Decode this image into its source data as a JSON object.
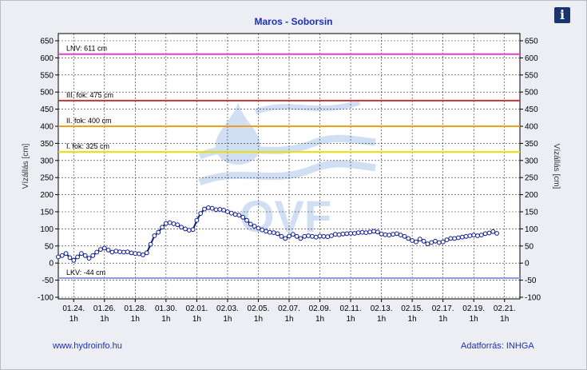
{
  "header": {
    "title": "Maros - Soborsin",
    "info_icon": "info-icon",
    "info_label": "i"
  },
  "footer": {
    "website": "www.hydroinfo.hu",
    "source": "Adatforrás: INHGA"
  },
  "watermark": "OVF",
  "colors": {
    "series": "#0a1a9a",
    "lnv": "#e040d0",
    "fok3": "#c8323a",
    "fok2": "#f0a020",
    "fok1": "#e8e000",
    "lkv": "#8b9ee8",
    "grid": "#2a2a2a",
    "watermark": "#aac6ea"
  },
  "chart_data": {
    "type": "line",
    "title": "Maros - Soborsin",
    "ylabel": "Vízállás [cm]",
    "ylim": [
      -100,
      650
    ],
    "yticks": [
      -100,
      -50,
      0,
      50,
      100,
      150,
      200,
      250,
      300,
      350,
      400,
      450,
      500,
      550,
      600,
      650
    ],
    "xlim": [
      0,
      30
    ],
    "xticks": [
      {
        "x": 1,
        "date": "01.24.",
        "hour": "1h"
      },
      {
        "x": 3,
        "date": "01.26.",
        "hour": "1h"
      },
      {
        "x": 5,
        "date": "01.28.",
        "hour": "1h"
      },
      {
        "x": 7,
        "date": "01.30.",
        "hour": "1h"
      },
      {
        "x": 9,
        "date": "02.01.",
        "hour": "1h"
      },
      {
        "x": 11,
        "date": "02.03.",
        "hour": "1h"
      },
      {
        "x": 13,
        "date": "02.05.",
        "hour": "1h"
      },
      {
        "x": 15,
        "date": "02.07.",
        "hour": "1h"
      },
      {
        "x": 17,
        "date": "02.09.",
        "hour": "1h"
      },
      {
        "x": 19,
        "date": "02.11.",
        "hour": "1h"
      },
      {
        "x": 21,
        "date": "02.13.",
        "hour": "1h"
      },
      {
        "x": 23,
        "date": "02.15.",
        "hour": "1h"
      },
      {
        "x": 25,
        "date": "02.17.",
        "hour": "1h"
      },
      {
        "x": 27,
        "date": "02.19.",
        "hour": "1h"
      },
      {
        "x": 29,
        "date": "02.21.",
        "hour": "1h"
      }
    ],
    "reference_lines": [
      {
        "key": "lnv",
        "label": "LNV: 611 cm",
        "value": 611,
        "color": "#e040d0"
      },
      {
        "key": "fok3",
        "label": "III. fok: 475 cm",
        "value": 475,
        "color": "#c8323a"
      },
      {
        "key": "fok2",
        "label": "II. fok: 400 cm",
        "value": 400,
        "color": "#f0a020"
      },
      {
        "key": "fok1",
        "label": "I. fok: 325 cm",
        "value": 325,
        "color": "#e8e000"
      },
      {
        "key": "lkv",
        "label": "LKV: -44 cm",
        "value": -44,
        "color": "#8b9ee8"
      }
    ],
    "grid": true,
    "series": [
      {
        "x": [
          0.0,
          0.25,
          0.5,
          0.75,
          1.0,
          1.25,
          1.5,
          1.75,
          2.0,
          2.25,
          2.5,
          2.75,
          3.0,
          3.25,
          3.5,
          3.75,
          4.0,
          4.25,
          4.5,
          4.75,
          5.0,
          5.25,
          5.5,
          5.75,
          6.0,
          6.25,
          6.5,
          6.75,
          7.0,
          7.25,
          7.5,
          7.75,
          8.0,
          8.25,
          8.5,
          8.75,
          9.0,
          9.25,
          9.5,
          9.75,
          10.0,
          10.25,
          10.5,
          10.75,
          11.0,
          11.25,
          11.5,
          11.75,
          12.0,
          12.25,
          12.5,
          12.75,
          13.0,
          13.25,
          13.5,
          13.75,
          14.0,
          14.25,
          14.5,
          14.75,
          15.0,
          15.25,
          15.5,
          15.75,
          16.0,
          16.25,
          16.5,
          16.75,
          17.0,
          17.25,
          17.5,
          17.75,
          18.0,
          18.25,
          18.5,
          18.75,
          19.0,
          19.25,
          19.5,
          19.75,
          20.0,
          20.25,
          20.5,
          20.75,
          21.0,
          21.25,
          21.5,
          21.75,
          22.0,
          22.25,
          22.5,
          22.75,
          23.0,
          23.25,
          23.5,
          23.75,
          24.0,
          24.25,
          24.5,
          24.75,
          25.0,
          25.25,
          25.5,
          25.75,
          26.0,
          26.25,
          26.5,
          26.75,
          27.0,
          27.25,
          27.5,
          27.75,
          28.0,
          28.25,
          28.5
        ],
        "values": [
          18,
          22,
          28,
          16,
          8,
          18,
          28,
          22,
          14,
          22,
          32,
          40,
          44,
          38,
          32,
          35,
          33,
          32,
          33,
          30,
          28,
          27,
          24,
          30,
          55,
          80,
          90,
          105,
          116,
          118,
          115,
          112,
          105,
          100,
          96,
          98,
          125,
          145,
          158,
          162,
          160,
          156,
          157,
          155,
          150,
          146,
          142,
          140,
          134,
          125,
          114,
          108,
          102,
          97,
          93,
          90,
          89,
          86,
          78,
          72,
          79,
          84,
          78,
          72,
          78,
          80,
          78,
          76,
          79,
          78,
          77,
          80,
          84,
          83,
          85,
          86,
          87,
          87,
          89,
          90,
          89,
          91,
          93,
          91,
          85,
          83,
          82,
          84,
          86,
          82,
          78,
          72,
          66,
          62,
          70,
          64,
          56,
          60,
          64,
          60,
          62,
          68,
          72,
          72,
          74,
          76,
          78,
          80,
          82,
          80,
          82,
          86,
          88,
          92,
          87
        ]
      }
    ]
  }
}
